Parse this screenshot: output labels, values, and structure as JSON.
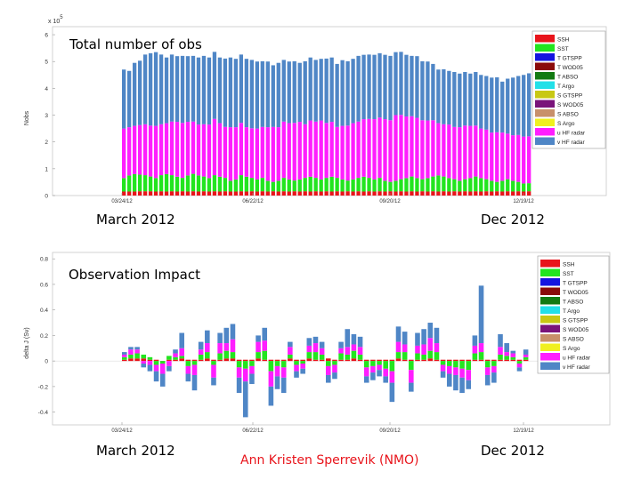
{
  "charts": [
    {
      "overlay_title": "Total number of obs",
      "ylabel": "Nobs",
      "exponent": "x 10",
      "exponent_power": "5",
      "y_ticks": [
        "0",
        "1",
        "2",
        "3",
        "4",
        "5",
        "6"
      ],
      "x_ticks": [
        "03/24/12",
        "06/22/12",
        "09/20/12",
        "12/19/12"
      ],
      "start_label": "March 2012",
      "end_label": "Dec 2012"
    },
    {
      "overlay_title": "Observation Impact",
      "ylabel": "delta J (Sv)",
      "y_ticks": [
        "-0.4",
        "-0.2",
        "0",
        "0.2",
        "0.4",
        "0.6",
        "0.8"
      ],
      "x_ticks": [
        "03/24/12",
        "06/22/12",
        "09/20/12",
        "12/19/12"
      ],
      "start_label": "March 2012",
      "end_label": "Dec 2012"
    }
  ],
  "credit": "Ann Kristen Sperrevik (NMO)",
  "colors": {
    "SSH": "#e8141b",
    "SST": "#22e51f",
    "T GTSPP": "#1414e0",
    "T WOD05": "#8a0a0a",
    "T ABSO": "#127a12",
    "T Argo": "#22e0e8",
    "S GTSPP": "#c8c814",
    "S WOD05": "#7a147a",
    "S ABSO": "#c8906a",
    "S Argo": "#f0f020",
    "u HF radar": "#ff1eff",
    "v HF radar": "#4f86c6"
  },
  "chart_data": [
    {
      "type": "stacked-bar",
      "title": "Total number of obs",
      "ylabel": "Nobs",
      "y_multiplier": 100000,
      "ylim": [
        0,
        6.3
      ],
      "x_tick_labels": [
        "03/24/12",
        "06/22/12",
        "09/20/12",
        "12/19/12"
      ],
      "legend": [
        "SSH",
        "SST",
        "T GTSPP",
        "T WOD05",
        "T ABSO",
        "T Argo",
        "S GTSPP",
        "S WOD05",
        "S ABSO",
        "S Argo",
        "u HF radar",
        "v HF radar"
      ],
      "legend_position": "top-right",
      "series": [
        {
          "name": "SSH",
          "values": [
            0.15,
            0.15,
            0.15,
            0.16,
            0.16,
            0.16,
            0.15,
            0.16,
            0.15,
            0.16,
            0.15,
            0.16,
            0.15,
            0.16,
            0.15,
            0.16,
            0.15,
            0.16,
            0.15,
            0.16,
            0.15,
            0.15,
            0.16,
            0.15,
            0.16,
            0.15,
            0.16,
            0.15,
            0.16,
            0.15,
            0.16,
            0.15,
            0.16,
            0.15,
            0.16,
            0.15,
            0.16,
            0.15,
            0.16,
            0.15,
            0.16,
            0.15,
            0.16,
            0.15,
            0.16,
            0.15,
            0.16,
            0.15,
            0.16,
            0.15,
            0.16,
            0.15,
            0.16,
            0.15,
            0.16,
            0.15,
            0.16,
            0.15,
            0.16,
            0.15,
            0.16,
            0.15,
            0.16,
            0.15,
            0.16,
            0.15,
            0.16,
            0.15,
            0.16,
            0.15,
            0.16,
            0.15,
            0.16,
            0.15,
            0.16,
            0.15,
            0.16
          ]
        },
        {
          "name": "SST",
          "values": [
            0.5,
            0.6,
            0.65,
            0.62,
            0.6,
            0.55,
            0.5,
            0.6,
            0.65,
            0.6,
            0.55,
            0.5,
            0.6,
            0.65,
            0.6,
            0.55,
            0.5,
            0.6,
            0.55,
            0.5,
            0.4,
            0.45,
            0.6,
            0.55,
            0.5,
            0.45,
            0.5,
            0.4,
            0.35,
            0.4,
            0.5,
            0.45,
            0.4,
            0.45,
            0.5,
            0.55,
            0.5,
            0.45,
            0.5,
            0.55,
            0.5,
            0.45,
            0.4,
            0.45,
            0.5,
            0.55,
            0.5,
            0.45,
            0.5,
            0.4,
            0.35,
            0.4,
            0.45,
            0.5,
            0.55,
            0.5,
            0.45,
            0.5,
            0.55,
            0.6,
            0.55,
            0.5,
            0.45,
            0.4,
            0.45,
            0.5,
            0.55,
            0.5,
            0.45,
            0.4,
            0.35,
            0.4,
            0.45,
            0.4,
            0.35,
            0.3,
            0.3
          ]
        },
        {
          "name": "u HF radar",
          "values": [
            1.85,
            1.8,
            1.8,
            1.85,
            1.9,
            1.9,
            1.95,
            1.9,
            1.9,
            2.0,
            2.05,
            2.05,
            2.0,
            1.95,
            1.9,
            1.95,
            2.0,
            2.1,
            2.0,
            1.9,
            2.0,
            1.95,
            1.95,
            1.85,
            1.85,
            1.9,
            1.9,
            2.0,
            2.05,
            2.0,
            2.1,
            2.1,
            2.15,
            2.15,
            2.0,
            2.1,
            2.1,
            2.2,
            2.05,
            2.05,
            1.9,
            2.0,
            2.05,
            2.1,
            2.1,
            2.15,
            2.2,
            2.25,
            2.25,
            2.3,
            2.3,
            2.45,
            2.4,
            2.3,
            2.25,
            2.25,
            2.2,
            2.15,
            2.1,
            1.95,
            1.95,
            2.0,
            1.95,
            2.0,
            2.0,
            1.95,
            1.9,
            1.85,
            1.85,
            1.8,
            1.85,
            1.8,
            1.7,
            1.7,
            1.75,
            1.75,
            1.75
          ]
        },
        {
          "name": "v HF radar",
          "values": [
            2.2,
            2.1,
            2.35,
            2.4,
            2.6,
            2.7,
            2.75,
            2.6,
            2.45,
            2.5,
            2.45,
            2.5,
            2.45,
            2.45,
            2.5,
            2.55,
            2.5,
            2.5,
            2.45,
            2.55,
            2.6,
            2.55,
            2.55,
            2.55,
            2.55,
            2.5,
            2.45,
            2.45,
            2.3,
            2.4,
            2.3,
            2.3,
            2.3,
            2.2,
            2.35,
            2.35,
            2.3,
            2.3,
            2.4,
            2.4,
            2.35,
            2.45,
            2.4,
            2.4,
            2.45,
            2.4,
            2.4,
            2.4,
            2.4,
            2.4,
            2.4,
            2.35,
            2.35,
            2.3,
            2.25,
            2.3,
            2.2,
            2.2,
            2.1,
            2.0,
            2.05,
            2.0,
            2.05,
            2.0,
            2.0,
            1.95,
            2.0,
            2.0,
            2.0,
            2.05,
            2.05,
            1.9,
            2.05,
            2.15,
            2.2,
            2.3,
            2.35
          ]
        }
      ]
    },
    {
      "type": "stacked-bar",
      "title": "Observation Impact",
      "ylabel": "delta J (Sv)",
      "ylim": [
        -0.5,
        0.85
      ],
      "x_tick_labels": [
        "03/24/12",
        "06/22/12",
        "09/20/12",
        "12/19/12"
      ],
      "legend": [
        "SSH",
        "SST",
        "T GTSPP",
        "T WOD05",
        "T ABSO",
        "T Argo",
        "S GTSPP",
        "S WOD05",
        "S ABSO",
        "S Argo",
        "u HF radar",
        "v HF radar"
      ],
      "legend_position": "top-right",
      "series": [
        {
          "name": "SSH",
          "values": [
            0.01,
            0.02,
            0.02,
            0.02,
            0.01,
            0.01,
            0.0,
            0.01,
            0.01,
            0.02,
            0.01,
            0.01,
            0.01,
            0.02,
            0.01,
            0.01,
            0.02,
            0.02,
            0.01,
            0.01,
            0.01,
            0.02,
            0.01,
            0.01,
            0.01,
            0.01,
            0.02,
            0.01,
            0.01,
            0.02,
            0.01,
            0.01,
            0.02,
            0.01,
            0.01,
            0.01,
            0.02,
            0.01,
            0.01,
            0.01,
            0.01,
            0.01,
            0.01,
            0.02,
            0.01,
            0.01,
            0.01,
            0.01,
            0.02,
            0.01,
            0.01,
            0.01,
            0.01,
            0.01,
            0.01,
            0.01,
            0.01,
            0.01,
            0.01,
            0.01,
            0.01,
            0.01,
            0.01,
            0.01
          ]
        },
        {
          "name": "SST",
          "values": [
            0.02,
            0.03,
            0.04,
            0.03,
            0.02,
            -0.03,
            -0.02,
            0.03,
            0.02,
            0.02,
            -0.04,
            -0.03,
            0.04,
            0.05,
            -0.03,
            0.05,
            0.06,
            0.05,
            -0.05,
            -0.06,
            -0.04,
            0.05,
            0.07,
            -0.08,
            -0.04,
            -0.05,
            0.03,
            -0.03,
            -0.02,
            0.05,
            0.06,
            0.04,
            -0.04,
            -0.03,
            0.05,
            0.04,
            0.06,
            0.04,
            -0.05,
            -0.04,
            -0.03,
            -0.06,
            -0.08,
            0.05,
            0.06,
            -0.07,
            0.05,
            0.04,
            0.06,
            0.06,
            -0.03,
            -0.04,
            -0.05,
            -0.06,
            -0.07,
            0.05,
            0.06,
            -0.05,
            -0.04,
            0.04,
            0.03,
            0.02,
            -0.02,
            0.02
          ]
        },
        {
          "name": "u HF radar",
          "values": [
            0.02,
            0.04,
            0.03,
            -0.02,
            -0.03,
            -0.05,
            -0.08,
            -0.04,
            0.03,
            0.06,
            -0.06,
            -0.08,
            0.04,
            0.07,
            -0.1,
            0.08,
            0.06,
            0.1,
            -0.08,
            -0.1,
            -0.06,
            0.08,
            0.08,
            -0.12,
            -0.08,
            -0.08,
            0.06,
            -0.05,
            -0.04,
            0.05,
            0.07,
            0.05,
            -0.07,
            -0.06,
            0.04,
            0.06,
            0.05,
            0.06,
            -0.07,
            -0.05,
            -0.04,
            -0.06,
            -0.09,
            0.08,
            0.06,
            -0.1,
            0.06,
            0.08,
            0.1,
            0.07,
            -0.05,
            -0.06,
            -0.06,
            -0.07,
            -0.08,
            0.06,
            0.07,
            -0.06,
            -0.05,
            0.06,
            0.03,
            0.03,
            -0.03,
            0.02
          ]
        },
        {
          "name": "v HF radar",
          "values": [
            0.02,
            0.02,
            0.02,
            -0.03,
            -0.05,
            -0.08,
            -0.1,
            -0.04,
            0.03,
            0.12,
            -0.06,
            -0.12,
            0.06,
            0.1,
            -0.06,
            0.08,
            0.12,
            0.12,
            -0.12,
            -0.28,
            -0.08,
            0.05,
            0.1,
            -0.15,
            -0.1,
            -0.12,
            0.04,
            -0.05,
            -0.04,
            0.06,
            0.05,
            0.05,
            -0.06,
            -0.05,
            0.05,
            0.14,
            0.08,
            0.08,
            -0.05,
            -0.06,
            -0.05,
            -0.05,
            -0.15,
            0.12,
            0.1,
            -0.07,
            0.1,
            0.12,
            0.12,
            0.12,
            -0.05,
            -0.1,
            -0.12,
            -0.12,
            -0.07,
            0.08,
            0.45,
            -0.08,
            -0.08,
            0.1,
            0.07,
            0.02,
            -0.03,
            0.04
          ]
        }
      ]
    }
  ]
}
